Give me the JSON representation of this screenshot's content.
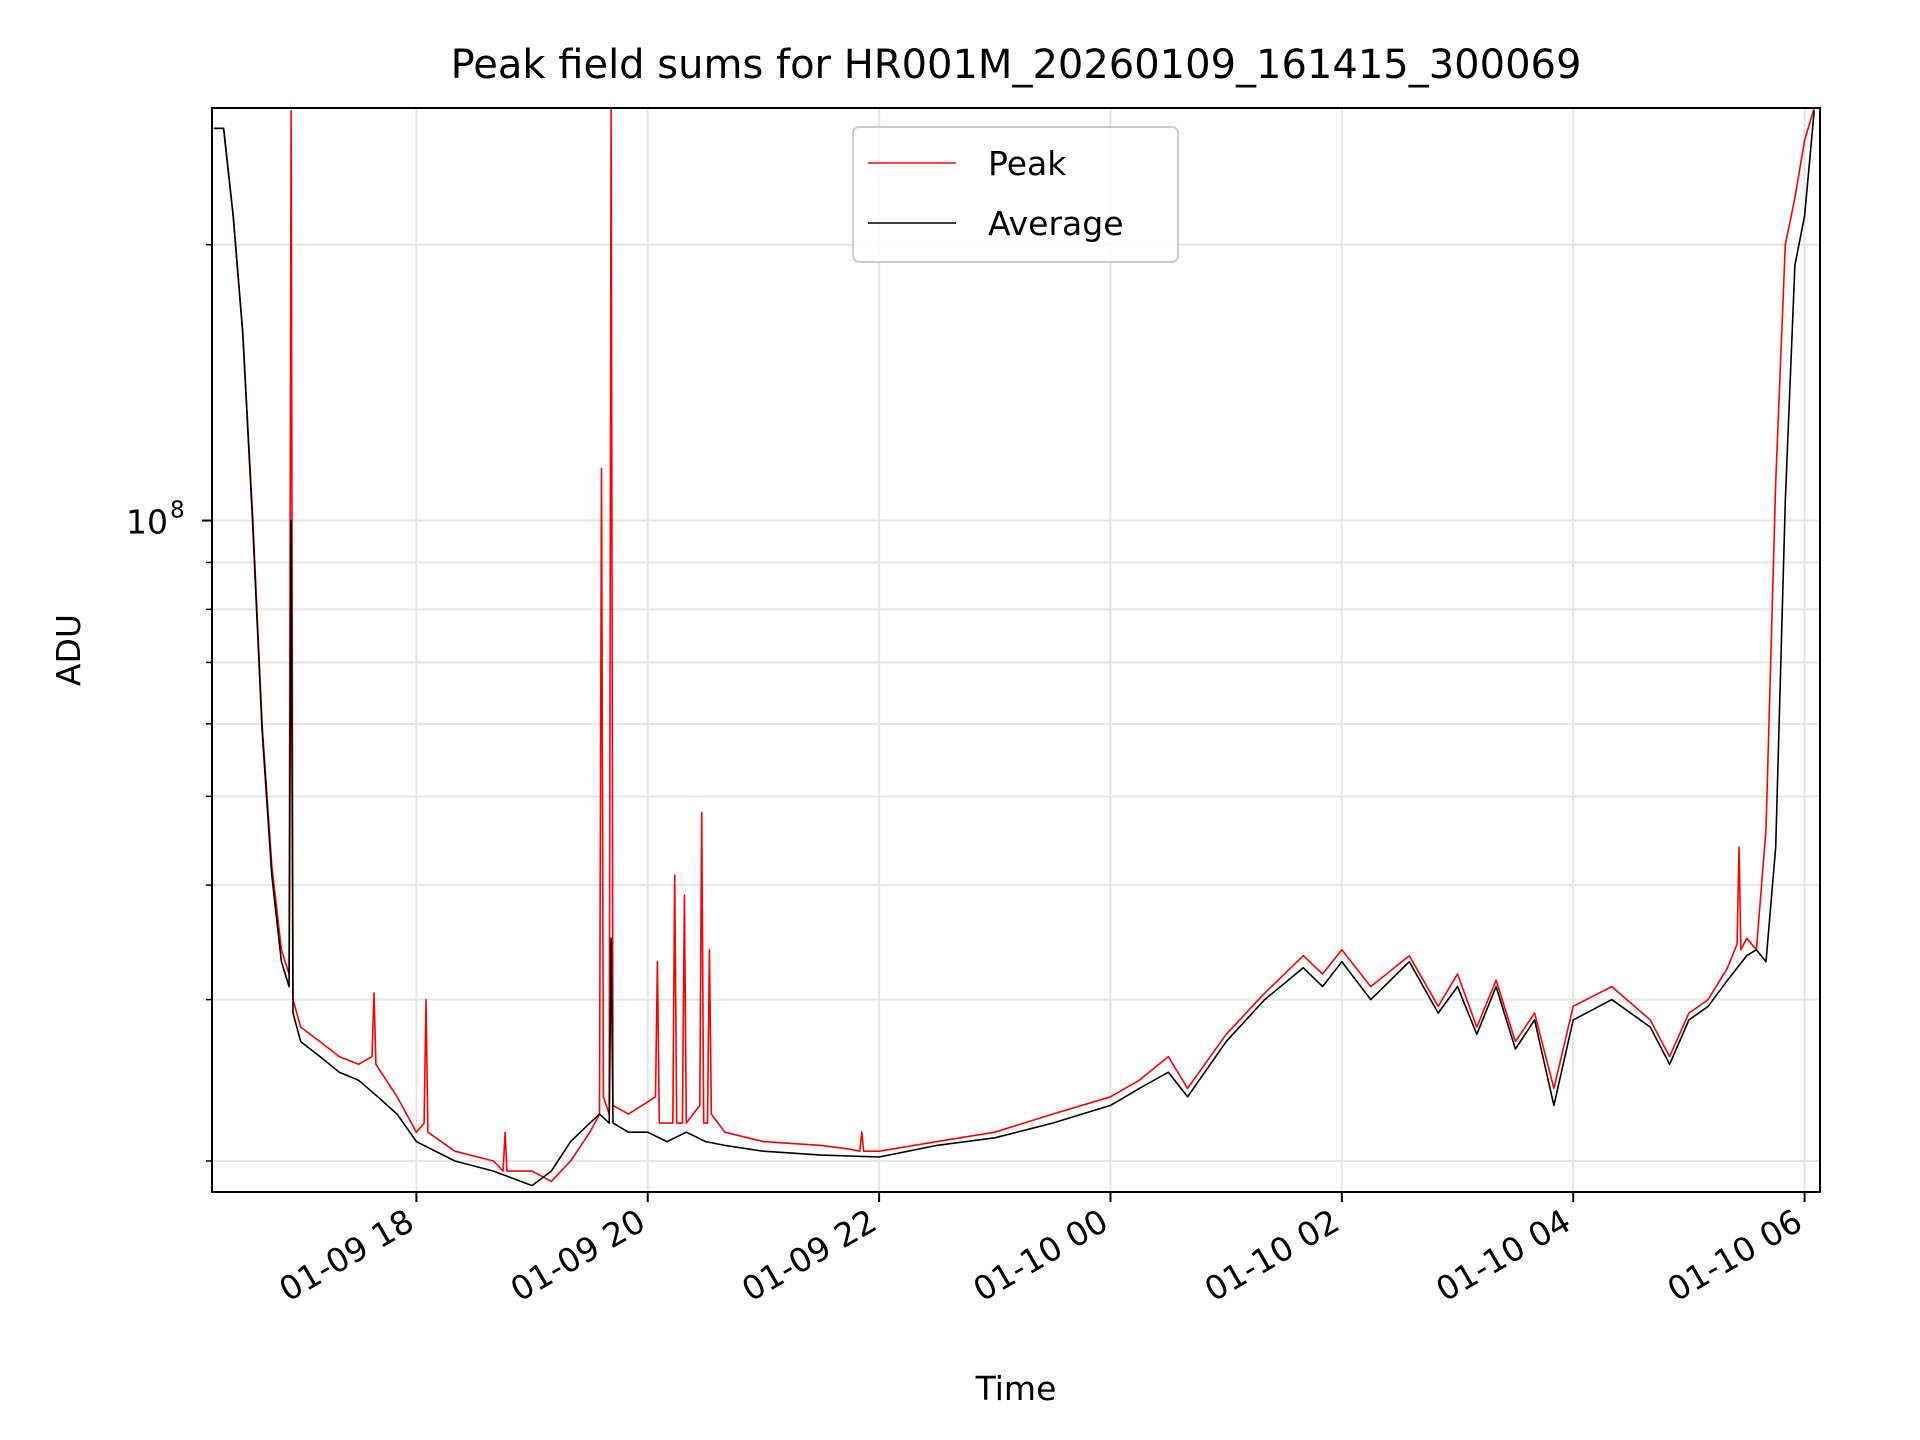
{
  "chart_data": {
    "type": "line",
    "title": "Peak field sums for HR001M_20260109_161415_300069",
    "xlabel": "Time",
    "ylabel": "ADU",
    "yscale": "log",
    "ylim": [
      18500000,
      282000000
    ],
    "xlim": [
      "2026-01-09 16:14",
      "2026-01-10 06:08"
    ],
    "x_ticks": [
      "2026-01-09 18:00",
      "2026-01-09 20:00",
      "2026-01-09 22:00",
      "2026-01-10 00:00",
      "2026-01-10 02:00",
      "2026-01-10 04:00",
      "2026-01-10 06:00"
    ],
    "x_tick_labels": [
      "01-09 18",
      "01-09 20",
      "01-09 22",
      "01-10 00",
      "01-10 02",
      "01-10 04",
      "01-10 06"
    ],
    "y_tick_labels": [
      {
        "value": 100000000,
        "label": "10",
        "exp": "8"
      }
    ],
    "y_minor_ticks": [
      20000000,
      30000000,
      40000000,
      50000000,
      60000000,
      70000000,
      80000000,
      90000000,
      200000000
    ],
    "grid": true,
    "legend": {
      "position": "top-center"
    },
    "colors": {
      "Peak": "#ff0000",
      "Average": "#000000"
    },
    "series": [
      {
        "name": "Peak",
        "x": [
          "2026-01-09 16:15",
          "2026-01-09 16:20",
          "2026-01-09 16:25",
          "2026-01-09 16:30",
          "2026-01-09 16:35",
          "2026-01-09 16:40",
          "2026-01-09 16:45",
          "2026-01-09 16:50",
          "2026-01-09 16:54",
          "2026-01-09 16:55",
          "2026-01-09 16:56",
          "2026-01-09 17:00",
          "2026-01-09 17:10",
          "2026-01-09 17:20",
          "2026-01-09 17:30",
          "2026-01-09 17:37",
          "2026-01-09 17:38",
          "2026-01-09 17:39",
          "2026-01-09 17:50",
          "2026-01-09 18:00",
          "2026-01-09 18:04",
          "2026-01-09 18:05",
          "2026-01-09 18:06",
          "2026-01-09 18:20",
          "2026-01-09 18:40",
          "2026-01-09 18:45",
          "2026-01-09 18:46",
          "2026-01-09 18:47",
          "2026-01-09 19:00",
          "2026-01-09 19:10",
          "2026-01-09 19:20",
          "2026-01-09 19:30",
          "2026-01-09 19:35",
          "2026-01-09 19:36",
          "2026-01-09 19:37",
          "2026-01-09 19:40",
          "2026-01-09 19:41",
          "2026-01-09 19:42",
          "2026-01-09 19:50",
          "2026-01-09 20:04",
          "2026-01-09 20:05",
          "2026-01-09 20:06",
          "2026-01-09 20:13",
          "2026-01-09 20:14",
          "2026-01-09 20:15",
          "2026-01-09 20:18",
          "2026-01-09 20:19",
          "2026-01-09 20:20",
          "2026-01-09 20:27",
          "2026-01-09 20:28",
          "2026-01-09 20:29",
          "2026-01-09 20:31",
          "2026-01-09 20:32",
          "2026-01-09 20:33",
          "2026-01-09 20:40",
          "2026-01-09 21:00",
          "2026-01-09 21:30",
          "2026-01-09 21:45",
          "2026-01-09 21:50",
          "2026-01-09 21:51",
          "2026-01-09 21:52",
          "2026-01-09 22:00",
          "2026-01-09 22:30",
          "2026-01-09 23:00",
          "2026-01-09 23:30",
          "2026-01-10 00:00",
          "2026-01-10 00:15",
          "2026-01-10 00:30",
          "2026-01-10 00:40",
          "2026-01-10 01:00",
          "2026-01-10 01:20",
          "2026-01-10 01:40",
          "2026-01-10 01:50",
          "2026-01-10 02:00",
          "2026-01-10 02:15",
          "2026-01-10 02:35",
          "2026-01-10 02:50",
          "2026-01-10 03:00",
          "2026-01-10 03:10",
          "2026-01-10 03:20",
          "2026-01-10 03:30",
          "2026-01-10 03:40",
          "2026-01-10 03:50",
          "2026-01-10 04:00",
          "2026-01-10 04:20",
          "2026-01-10 04:40",
          "2026-01-10 04:50",
          "2026-01-10 05:00",
          "2026-01-10 05:10",
          "2026-01-10 05:20",
          "2026-01-10 05:25",
          "2026-01-10 05:26",
          "2026-01-10 05:27",
          "2026-01-10 05:30",
          "2026-01-10 05:35",
          "2026-01-10 05:40",
          "2026-01-10 05:45",
          "2026-01-10 05:50",
          "2026-01-10 05:55",
          "2026-01-10 06:00",
          "2026-01-10 06:05"
        ],
        "y": [
          268000000,
          268000000,
          215000000,
          160000000,
          102000000,
          60000000,
          42000000,
          34000000,
          32000000,
          280000000,
          30000000,
          28000000,
          27000000,
          26000000,
          25500000,
          26000000,
          30500000,
          25500000,
          23500000,
          21500000,
          22000000,
          30000000,
          21500000,
          20500000,
          20000000,
          19500000,
          21500000,
          19500000,
          19500000,
          19000000,
          20000000,
          21500000,
          22500000,
          114000000,
          23500000,
          22500000,
          282000000,
          23000000,
          22500000,
          23500000,
          33000000,
          22000000,
          22000000,
          41000000,
          22000000,
          22000000,
          39000000,
          22000000,
          23000000,
          48000000,
          22000000,
          22000000,
          34000000,
          22500000,
          21500000,
          21000000,
          20800000,
          20600000,
          20500000,
          21500000,
          20500000,
          20500000,
          21000000,
          21500000,
          22500000,
          23500000,
          24500000,
          26000000,
          24000000,
          27500000,
          30500000,
          33500000,
          32000000,
          34000000,
          31000000,
          33500000,
          29500000,
          32000000,
          28000000,
          31500000,
          27000000,
          29000000,
          24000000,
          29500000,
          31000000,
          28500000,
          26000000,
          29000000,
          30000000,
          32500000,
          34500000,
          44000000,
          34000000,
          35000000,
          34000000,
          46000000,
          110000000,
          200000000,
          225000000,
          260000000,
          282000000
        ]
      },
      {
        "name": "Average",
        "x": [
          "2026-01-09 16:15",
          "2026-01-09 16:20",
          "2026-01-09 16:25",
          "2026-01-09 16:30",
          "2026-01-09 16:35",
          "2026-01-09 16:40",
          "2026-01-09 16:45",
          "2026-01-09 16:50",
          "2026-01-09 16:54",
          "2026-01-09 16:55",
          "2026-01-09 16:56",
          "2026-01-09 17:00",
          "2026-01-09 17:10",
          "2026-01-09 17:20",
          "2026-01-09 17:30",
          "2026-01-09 17:40",
          "2026-01-09 17:50",
          "2026-01-09 18:00",
          "2026-01-09 18:20",
          "2026-01-09 18:40",
          "2026-01-09 19:00",
          "2026-01-09 19:10",
          "2026-01-09 19:20",
          "2026-01-09 19:30",
          "2026-01-09 19:35",
          "2026-01-09 19:40",
          "2026-01-09 19:41",
          "2026-01-09 19:42",
          "2026-01-09 19:50",
          "2026-01-09 20:00",
          "2026-01-09 20:10",
          "2026-01-09 20:20",
          "2026-01-09 20:30",
          "2026-01-09 20:40",
          "2026-01-09 21:00",
          "2026-01-09 21:30",
          "2026-01-09 22:00",
          "2026-01-09 22:30",
          "2026-01-09 23:00",
          "2026-01-09 23:30",
          "2026-01-10 00:00",
          "2026-01-10 00:15",
          "2026-01-10 00:30",
          "2026-01-10 00:40",
          "2026-01-10 01:00",
          "2026-01-10 01:20",
          "2026-01-10 01:40",
          "2026-01-10 01:50",
          "2026-01-10 02:00",
          "2026-01-10 02:15",
          "2026-01-10 02:35",
          "2026-01-10 02:50",
          "2026-01-10 03:00",
          "2026-01-10 03:10",
          "2026-01-10 03:20",
          "2026-01-10 03:30",
          "2026-01-10 03:40",
          "2026-01-10 03:50",
          "2026-01-10 04:00",
          "2026-01-10 04:20",
          "2026-01-10 04:40",
          "2026-01-10 04:50",
          "2026-01-10 05:00",
          "2026-01-10 05:10",
          "2026-01-10 05:20",
          "2026-01-10 05:30",
          "2026-01-10 05:35",
          "2026-01-10 05:40",
          "2026-01-10 05:45",
          "2026-01-10 05:50",
          "2026-01-10 05:55",
          "2026-01-10 06:00",
          "2026-01-10 06:05"
        ],
        "y": [
          268000000,
          268000000,
          215000000,
          160000000,
          100000000,
          59000000,
          41000000,
          33000000,
          31000000,
          100000000,
          29000000,
          27000000,
          26000000,
          25000000,
          24500000,
          23500000,
          22500000,
          21000000,
          20000000,
          19500000,
          18800000,
          19500000,
          21000000,
          22000000,
          22500000,
          22000000,
          35000000,
          22000000,
          21500000,
          21500000,
          21000000,
          21500000,
          21000000,
          20800000,
          20500000,
          20300000,
          20200000,
          20800000,
          21200000,
          22000000,
          23000000,
          24000000,
          25000000,
          23500000,
          27000000,
          30000000,
          32500000,
          31000000,
          33000000,
          30000000,
          33000000,
          29000000,
          31000000,
          27500000,
          31000000,
          26500000,
          28500000,
          23000000,
          28500000,
          30000000,
          28000000,
          25500000,
          28500000,
          29500000,
          31500000,
          33500000,
          34000000,
          33000000,
          44000000,
          105000000,
          190000000,
          215000000,
          280000000
        ]
      }
    ]
  }
}
